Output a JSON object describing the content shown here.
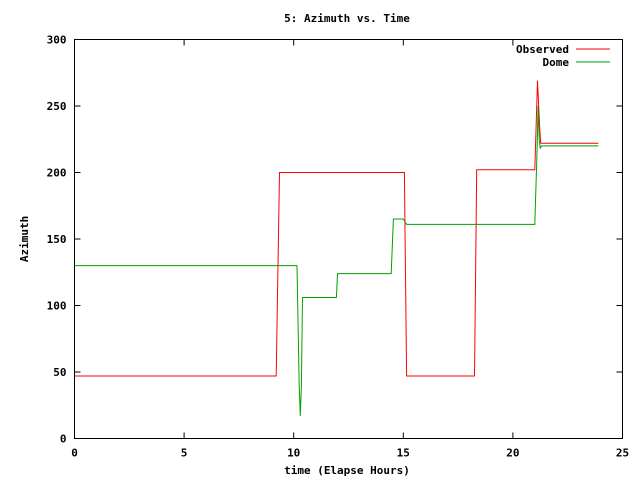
{
  "chart_data": {
    "type": "line",
    "title": "5: Azimuth vs. Time",
    "xlabel": "time (Elapse Hours)",
    "ylabel": "Azimuth",
    "xlim": [
      0,
      25
    ],
    "ylim": [
      0,
      300
    ],
    "xticks": [
      0,
      5,
      10,
      15,
      20,
      25
    ],
    "yticks": [
      0,
      50,
      100,
      150,
      200,
      250,
      300
    ],
    "grid": false,
    "legend": "top-right",
    "series": [
      {
        "name": "Observed",
        "color": "#ff0000",
        "x": [
          0,
          9.2,
          9.35,
          15.05,
          15.15,
          18.25,
          18.35,
          21.0,
          21.12,
          21.22,
          21.27,
          21.35,
          23.9
        ],
        "y": [
          47,
          47,
          200,
          200,
          47,
          47,
          202,
          202,
          269,
          235,
          222,
          222,
          222
        ]
      },
      {
        "name": "Dome",
        "color": "#00a000",
        "x": [
          0,
          10.15,
          10.25,
          10.3,
          10.35,
          10.4,
          11.95,
          12.0,
          14.45,
          14.55,
          15.0,
          15.15,
          21.0,
          21.1,
          21.15,
          21.2,
          21.25,
          21.3,
          21.4,
          23.9
        ],
        "y": [
          130,
          130,
          40,
          17,
          40,
          106,
          106,
          124,
          124,
          165,
          165,
          161,
          161,
          215,
          250,
          225,
          218,
          220,
          220,
          220
        ]
      }
    ]
  }
}
